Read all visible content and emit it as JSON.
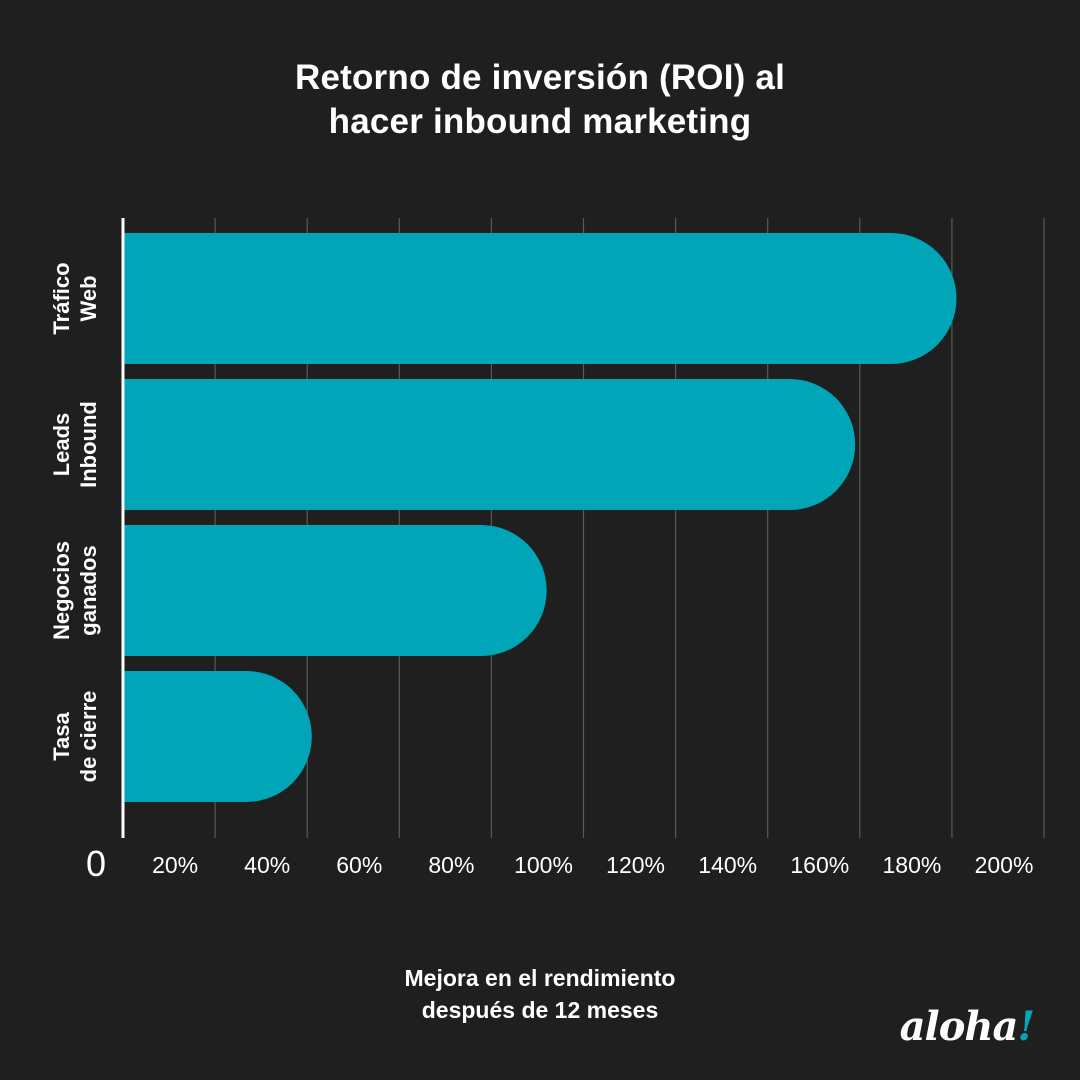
{
  "title": {
    "line1": "Retorno de inversión (ROI) al",
    "line2": "hacer inbound marketing"
  },
  "x_axis_label": {
    "line1": "Mejora en el rendimiento",
    "line2": "después de 12 meses"
  },
  "logo": {
    "text": "aloha",
    "mark": "!"
  },
  "colors": {
    "background": "#1f1f1f",
    "bar": "#00a6b8",
    "grid": "#5a5a5a",
    "text": "#ffffff"
  },
  "chart_data": {
    "type": "bar",
    "orientation": "horizontal",
    "categories": [
      [
        "Tráfico",
        "Web"
      ],
      [
        "Leads",
        "Inbound"
      ],
      [
        "Negocios",
        "ganados"
      ],
      [
        "Tasa",
        "de cierre"
      ]
    ],
    "values": [
      181,
      159,
      92,
      41
    ],
    "xlim": [
      0,
      200
    ],
    "xticks": [
      0,
      20,
      40,
      60,
      80,
      100,
      120,
      140,
      160,
      180,
      200
    ],
    "xtick_labels": [
      "0",
      "20%",
      "40%",
      "60%",
      "80%",
      "100%",
      "120%",
      "140%",
      "160%",
      "180%",
      "200%"
    ],
    "grid": true,
    "legend": "none"
  }
}
